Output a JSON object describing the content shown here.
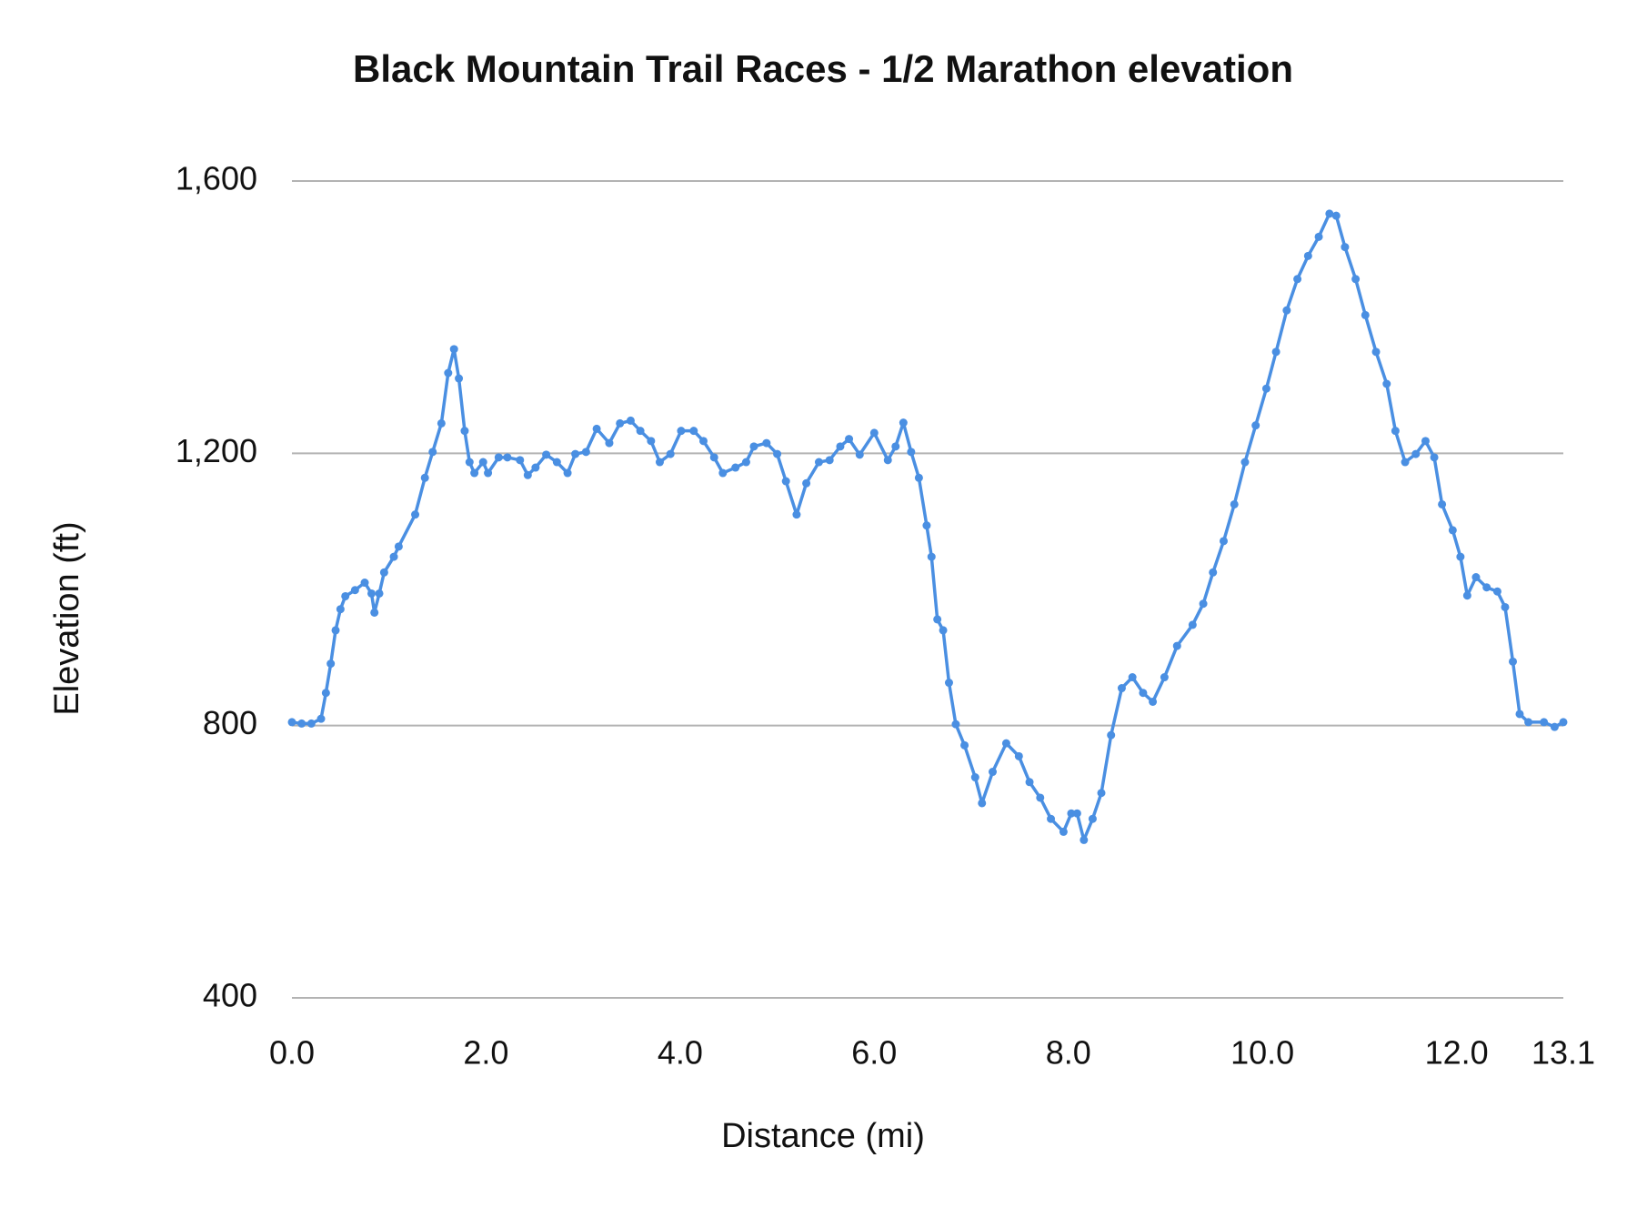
{
  "chart_data": {
    "type": "line",
    "title": "Black Mountain Trail Races - 1/2 Marathon elevation",
    "x_label": "Distance (mi)",
    "y_label": "Elevation (ft)",
    "x": [
      0.0,
      0.1,
      0.2,
      0.3,
      0.35,
      0.4,
      0.45,
      0.5,
      0.55,
      0.65,
      0.75,
      0.82,
      0.85,
      0.9,
      0.95,
      1.05,
      1.1,
      1.27,
      1.37,
      1.45,
      1.54,
      1.61,
      1.67,
      1.72,
      1.78,
      1.83,
      1.88,
      1.97,
      2.02,
      2.13,
      2.22,
      2.35,
      2.43,
      2.51,
      2.62,
      2.73,
      2.84,
      2.92,
      3.03,
      3.14,
      3.27,
      3.38,
      3.49,
      3.59,
      3.7,
      3.79,
      3.9,
      4.01,
      4.14,
      4.24,
      4.35,
      4.44,
      4.57,
      4.68,
      4.76,
      4.89,
      5.0,
      5.09,
      5.2,
      5.3,
      5.43,
      5.54,
      5.65,
      5.74,
      5.85,
      6.0,
      6.14,
      6.22,
      6.3,
      6.38,
      6.46,
      6.54,
      6.59,
      6.65,
      6.71,
      6.77,
      6.84,
      6.93,
      7.04,
      7.11,
      7.22,
      7.36,
      7.49,
      7.6,
      7.71,
      7.82,
      7.95,
      8.03,
      8.09,
      8.16,
      8.25,
      8.34,
      8.44,
      8.55,
      8.66,
      8.77,
      8.87,
      8.99,
      9.12,
      9.28,
      9.39,
      9.49,
      9.6,
      9.71,
      9.82,
      9.93,
      10.04,
      10.14,
      10.25,
      10.36,
      10.47,
      10.58,
      10.69,
      10.76,
      10.85,
      10.96,
      11.06,
      11.17,
      11.28,
      11.37,
      11.47,
      11.58,
      11.68,
      11.77,
      11.85,
      11.96,
      12.04,
      12.11,
      12.2,
      12.31,
      12.42,
      12.5,
      12.58,
      12.65,
      12.74,
      12.9,
      13.01,
      13.1
    ],
    "series": [
      {
        "name": "Elevation",
        "color": "#4a8fe2",
        "values": [
          805,
          803,
          803,
          810,
          848,
          891,
          940,
          971,
          990,
          999,
          1010,
          994,
          966,
          994,
          1025,
          1048,
          1063,
          1110,
          1164,
          1202,
          1244,
          1318,
          1353,
          1310,
          1233,
          1187,
          1171,
          1187,
          1171,
          1194,
          1194,
          1190,
          1168,
          1179,
          1198,
          1187,
          1171,
          1199,
          1202,
          1236,
          1215,
          1244,
          1248,
          1233,
          1218,
          1187,
          1199,
          1233,
          1233,
          1218,
          1194,
          1171,
          1179,
          1187,
          1210,
          1215,
          1199,
          1159,
          1110,
          1156,
          1187,
          1190,
          1210,
          1221,
          1198,
          1230,
          1190,
          1210,
          1245,
          1202,
          1164,
          1094,
          1048,
          956,
          940,
          863,
          802,
          771,
          724,
          686,
          732,
          774,
          755,
          717,
          694,
          663,
          644,
          671,
          671,
          632,
          663,
          701,
          786,
          855,
          871,
          848,
          835,
          871,
          917,
          948,
          979,
          1025,
          1071,
          1125,
          1187,
          1241,
          1295,
          1349,
          1410,
          1456,
          1490,
          1518,
          1552,
          1549,
          1503,
          1456,
          1403,
          1349,
          1302,
          1233,
          1187,
          1199,
          1218,
          1194,
          1125,
          1087,
          1048,
          991,
          1018,
          1003,
          997,
          974,
          894,
          817,
          805,
          805,
          798,
          805
        ]
      }
    ],
    "xlim": [
      0,
      13.1
    ],
    "xticks": [
      {
        "value": 0,
        "label": "0.0"
      },
      {
        "value": 2,
        "label": "2.0"
      },
      {
        "value": 4,
        "label": "4.0"
      },
      {
        "value": 6,
        "label": "6.0"
      },
      {
        "value": 8,
        "label": "8.0"
      },
      {
        "value": 10,
        "label": "10.0"
      },
      {
        "value": 12,
        "label": "12.0"
      },
      13.1
    ],
    "ylim": [
      400,
      1600
    ],
    "yticks": [
      {
        "value": 400,
        "label": "400"
      },
      {
        "value": 800,
        "label": "800"
      },
      {
        "value": 1200,
        "label": "1,200"
      },
      {
        "value": 1600,
        "label": "1,600"
      }
    ],
    "grid": true
  }
}
